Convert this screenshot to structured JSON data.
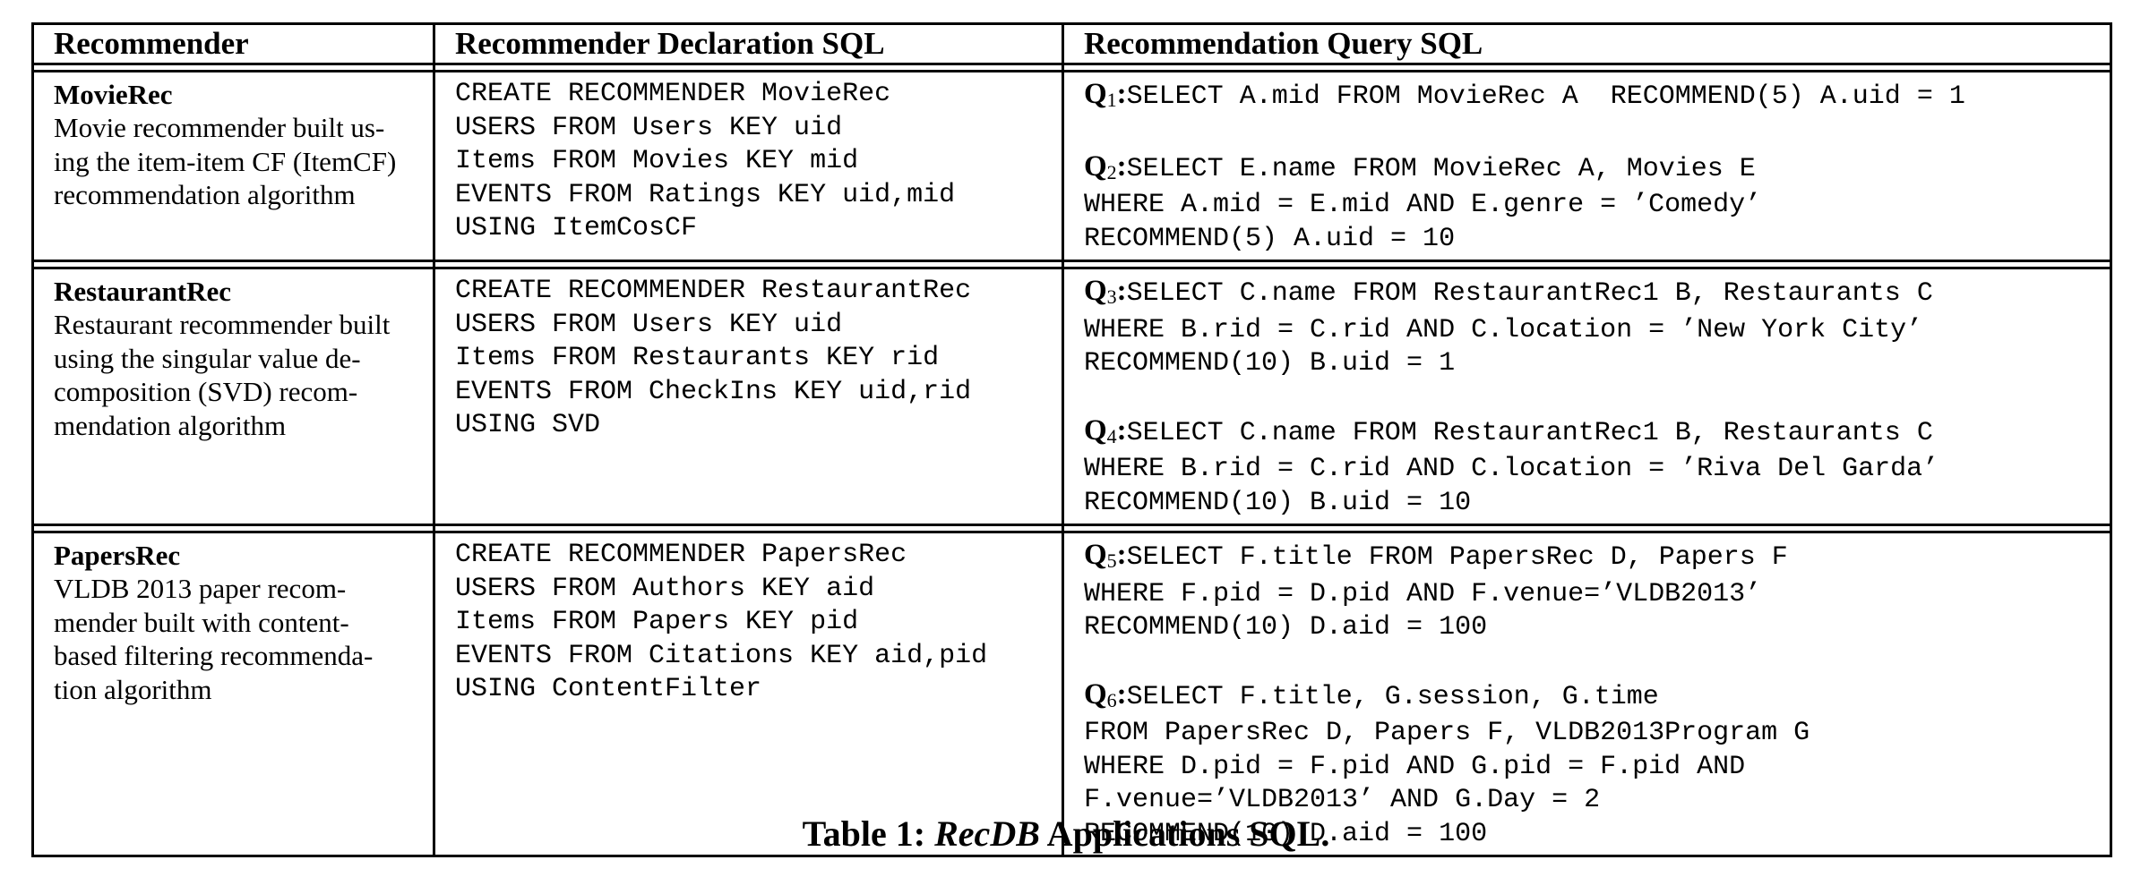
{
  "table": {
    "headers": [
      "Recommender",
      "Recommender Declaration SQL",
      "Recommendation Query SQL"
    ],
    "rows": [
      {
        "name": "MovieRec",
        "description": "Movie recommender built us-ing the item-item CF (ItemCF) recommendation algorithm",
        "description_lines": [
          "Movie recommender built us-",
          "ing the item-item CF (ItemCF)",
          "recommendation algorithm"
        ],
        "declaration": [
          "CREATE RECOMMENDER MovieRec",
          "USERS FROM Users KEY uid",
          "Items FROM Movies KEY mid",
          "EVENTS FROM Ratings KEY uid,mid",
          "USING ItemCosCF"
        ],
        "queries": [
          {
            "label": "Q",
            "index": "1",
            "lines": [
              "SELECT A.mid FROM MovieRec A  RECOMMEND(5) A.uid = 1"
            ]
          },
          {
            "label": "Q",
            "index": "2",
            "lines": [
              "SELECT E.name FROM MovieRec A, Movies E",
              "WHERE A.mid = E.mid AND E.genre = ’Comedy’",
              "RECOMMEND(5) A.uid = 10"
            ]
          }
        ]
      },
      {
        "name": "RestaurantRec",
        "description_lines": [
          "Restaurant recommender built",
          "using the singular value de-",
          "composition (SVD) recom-",
          "mendation algorithm"
        ],
        "declaration": [
          "CREATE RECOMMENDER RestaurantRec",
          "USERS FROM Users KEY uid",
          "Items FROM Restaurants KEY rid",
          "EVENTS FROM CheckIns KEY uid,rid",
          "USING SVD"
        ],
        "queries": [
          {
            "label": "Q",
            "index": "3",
            "lines": [
              "SELECT C.name FROM RestaurantRec1 B, Restaurants C",
              "WHERE B.rid = C.rid AND C.location = ’New York City’",
              "RECOMMEND(10) B.uid = 1"
            ]
          },
          {
            "label": "Q",
            "index": "4",
            "lines": [
              "SELECT C.name FROM RestaurantRec1 B, Restaurants C",
              "WHERE B.rid = C.rid AND C.location = ’Riva Del Garda’",
              "RECOMMEND(10) B.uid = 10"
            ]
          }
        ]
      },
      {
        "name": "PapersRec",
        "description_lines": [
          "VLDB 2013 paper recom-",
          "mender built with content-",
          "based filtering recommenda-",
          "tion algorithm"
        ],
        "declaration": [
          "CREATE RECOMMENDER PapersRec",
          "USERS FROM Authors KEY aid",
          "Items FROM Papers KEY pid",
          "EVENTS FROM Citations KEY aid,pid",
          "USING ContentFilter"
        ],
        "queries": [
          {
            "label": "Q",
            "index": "5",
            "lines": [
              "SELECT F.title FROM PapersRec D, Papers F",
              "WHERE F.pid = D.pid AND F.venue=’VLDB2013’",
              "RECOMMEND(10) D.aid = 100"
            ]
          },
          {
            "label": "Q",
            "index": "6",
            "lines": [
              "SELECT F.title, G.session, G.time",
              "FROM PapersRec D, Papers F, VLDB2013Program G",
              "WHERE D.pid = F.pid AND G.pid = F.pid AND",
              "F.venue=’VLDB2013’ AND G.Day = 2",
              "RECOMMEND(10) D.aid = 100"
            ]
          }
        ]
      }
    ]
  },
  "caption": {
    "prefix": "Table 1: ",
    "emph": "RecDB",
    "suffix": " Applications SQL."
  }
}
